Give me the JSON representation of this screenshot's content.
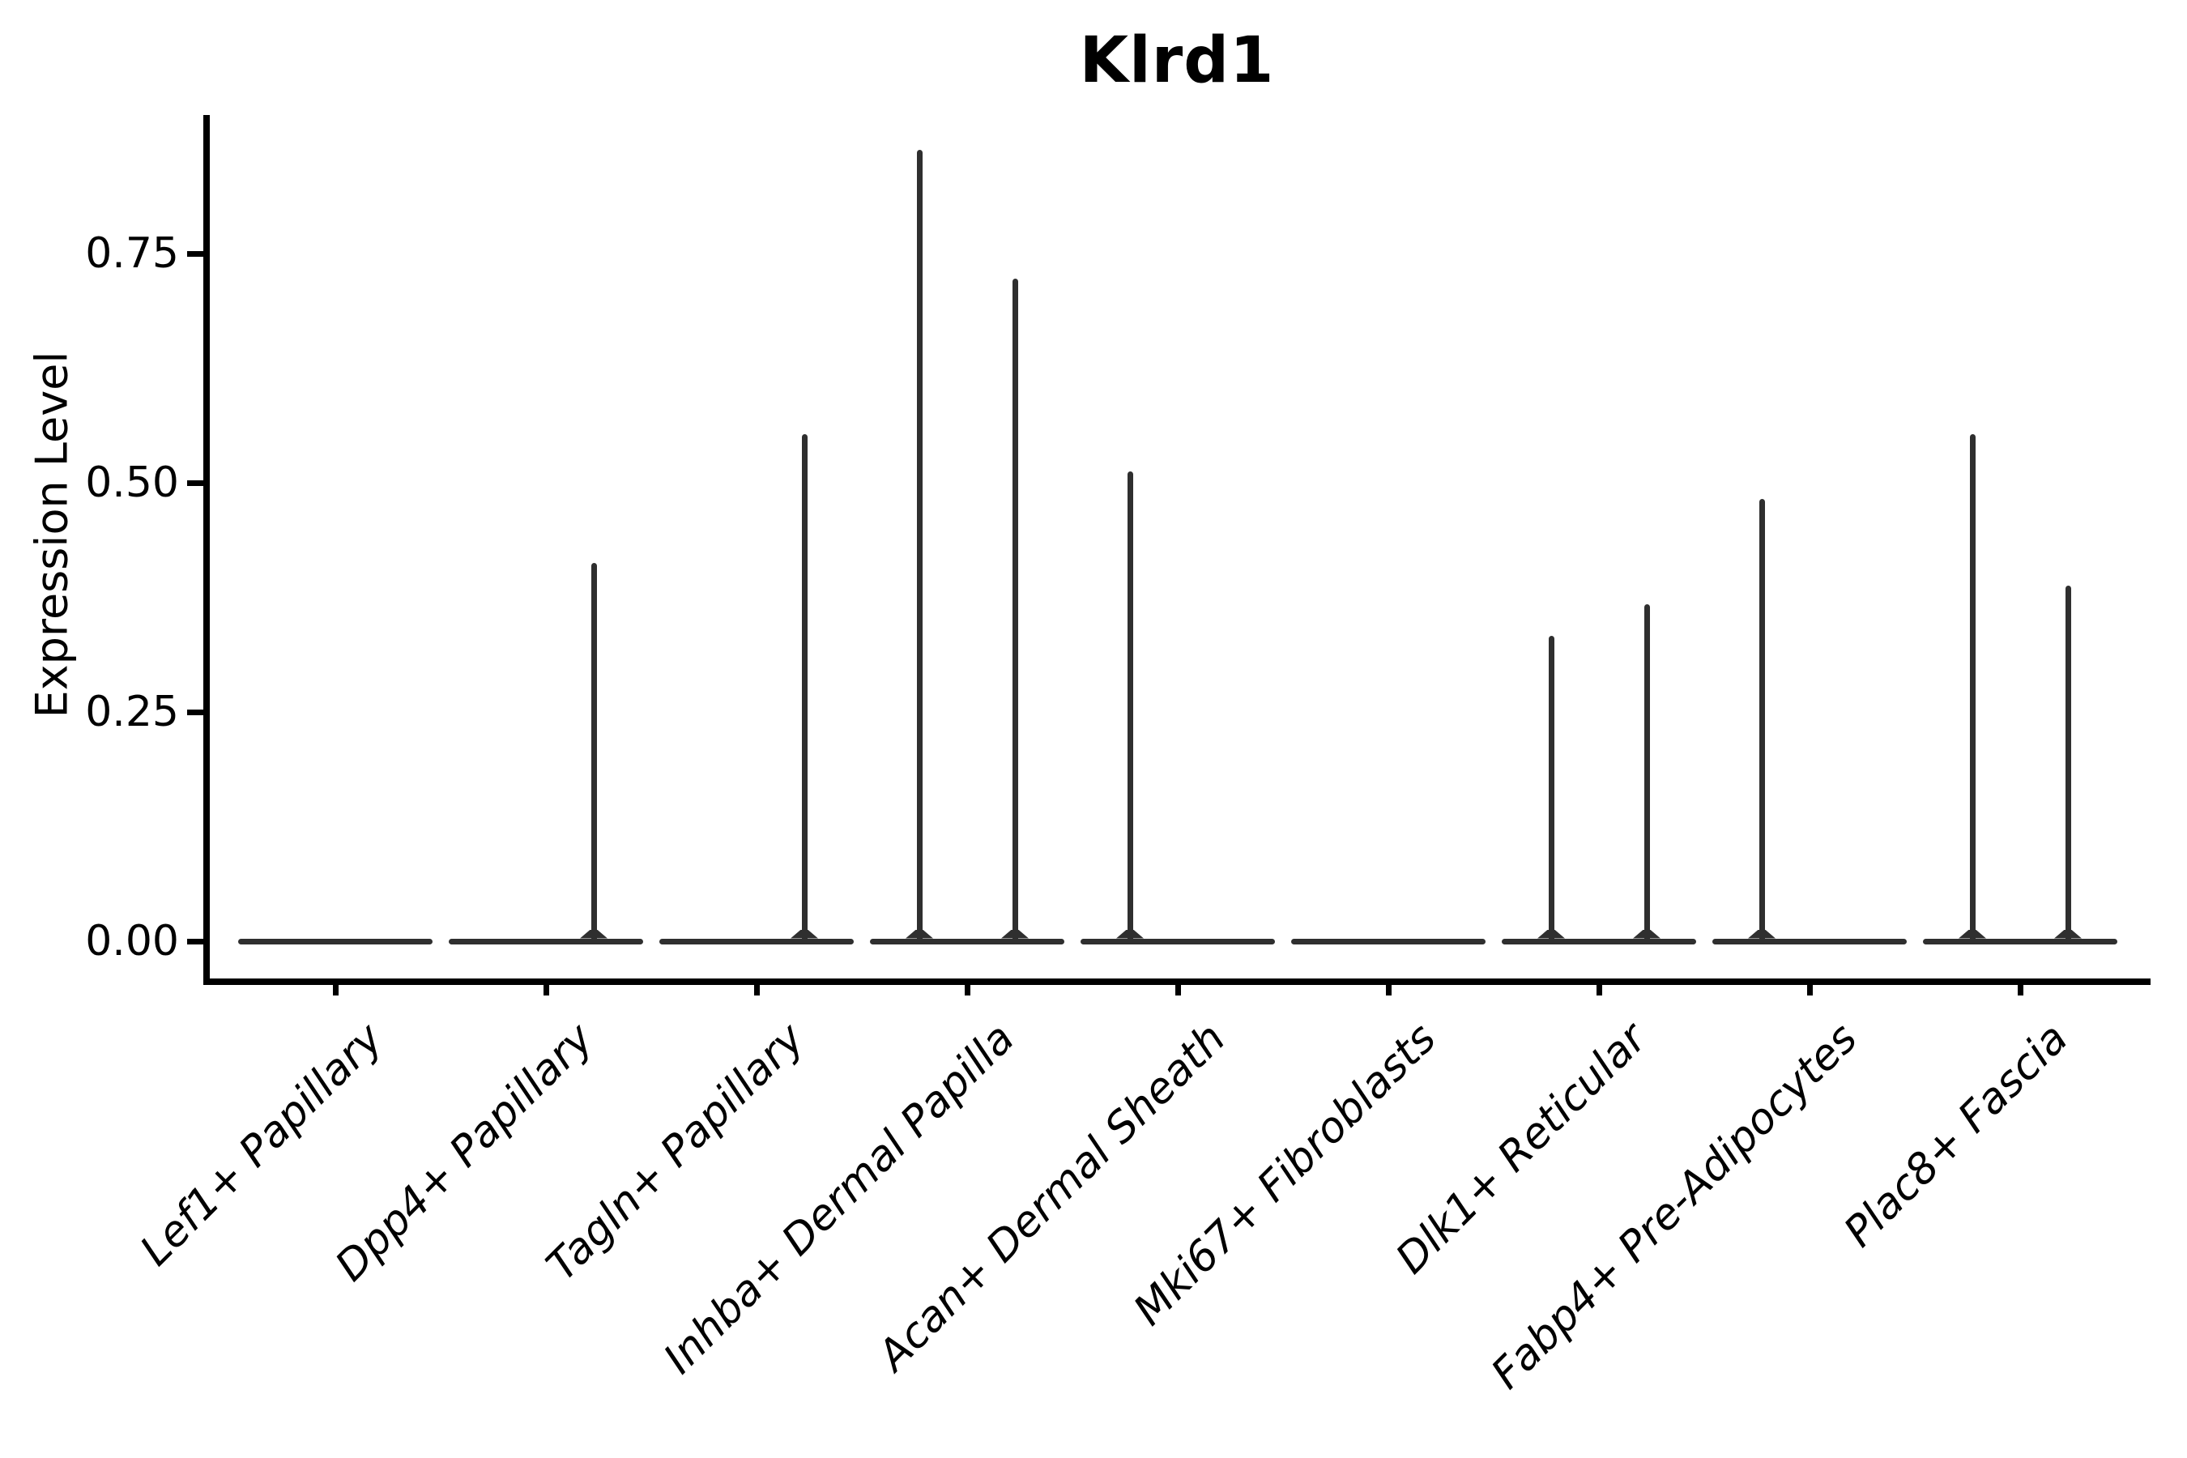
{
  "figure": {
    "background": "#ffffff"
  },
  "chart_data": {
    "type": "violin",
    "title": "Klrd1",
    "xlabel": "",
    "ylabel": "Expression Level",
    "ylim": [
      0,
      0.9
    ],
    "ytick_labels": [
      "0.00",
      "0.25",
      "0.50",
      "0.75"
    ],
    "ytick_values": [
      0.0,
      0.25,
      0.5,
      0.75
    ],
    "grid": false,
    "legend_position": "none",
    "categories": [
      "Lef1+ Papillary",
      "Dpp4+ Papillary",
      "Tagln+ Papillary",
      "Inhba+ Dermal Papilla",
      "Acan+ Dermal Sheath",
      "Mki67+ Fibroblasts",
      "Dlk1+ Reticular",
      "Fabp4+ Pre-Adipocytes",
      "Plac8+ Fascia"
    ],
    "violins": [
      {
        "category": "Lef1+ Papillary",
        "baseline_value": 0,
        "spikes": []
      },
      {
        "category": "Dpp4+ Papillary",
        "baseline_value": 0,
        "spikes": [
          {
            "side": "right",
            "value": 0.41
          }
        ]
      },
      {
        "category": "Tagln+ Papillary",
        "baseline_value": 0,
        "spikes": [
          {
            "side": "right",
            "value": 0.55
          }
        ]
      },
      {
        "category": "Inhba+ Dermal Papilla",
        "baseline_value": 0,
        "spikes": [
          {
            "side": "left",
            "value": 0.86
          },
          {
            "side": "right",
            "value": 0.72
          }
        ]
      },
      {
        "category": "Acan+ Dermal Sheath",
        "baseline_value": 0,
        "spikes": [
          {
            "side": "left",
            "value": 0.51
          }
        ]
      },
      {
        "category": "Mki67+ Fibroblasts",
        "baseline_value": 0,
        "spikes": []
      },
      {
        "category": "Dlk1+ Reticular",
        "baseline_value": 0,
        "spikes": [
          {
            "side": "left",
            "value": 0.33
          },
          {
            "side": "right",
            "value": 0.365
          }
        ]
      },
      {
        "category": "Fabp4+ Pre-Adipocytes",
        "baseline_value": 0,
        "spikes": [
          {
            "side": "left",
            "value": 0.48
          }
        ]
      },
      {
        "category": "Plac8+ Fascia",
        "baseline_value": 0,
        "spikes": [
          {
            "side": "left",
            "value": 0.55
          },
          {
            "side": "right",
            "value": 0.385
          }
        ]
      }
    ],
    "colors": {
      "violin_stroke": "#2f2f2f",
      "axis": "#000000",
      "text": "#000000"
    }
  }
}
